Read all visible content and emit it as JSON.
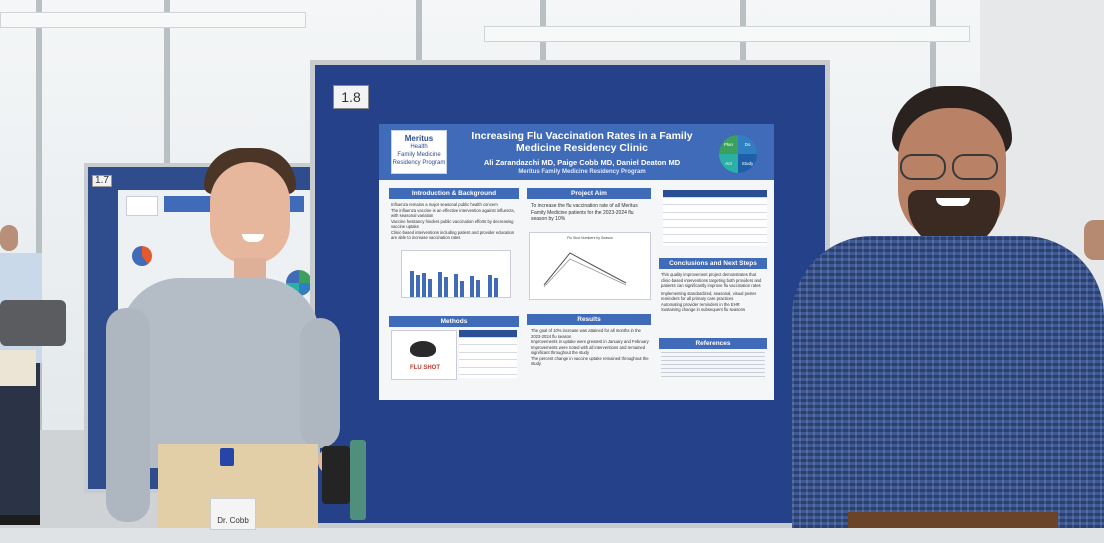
{
  "board_number": "1.8",
  "left_board_number": "1.7",
  "poster": {
    "logo": {
      "brand": "Meritus",
      "sub": "Health",
      "program": "Family Medicine Residency Program"
    },
    "title": "Increasing Flu Vaccination Rates in a Family Medicine Residency Clinic",
    "authors": "Ali Zarandazchi MD, Paige Cobb MD, Daniel Deaton MD",
    "program": "Meritus Family Medicine Residency Program",
    "pdsa": [
      "Plan",
      "Do",
      "Act",
      "Study"
    ],
    "sections": {
      "intro": "Introduction & Background",
      "aim": "Project Aim",
      "methods": "Methods",
      "results": "Results",
      "conclusions": "Conclusions and Next Steps",
      "references": "References"
    },
    "aim_text": "To increase the flu vaccination rate of all Meritus Family Medicine patients for the 2023-2024 flu season by 10%",
    "intro_bullets": [
      "Influenza remains a major seasonal public health concern",
      "The influenza vaccine is an effective intervention against influenza, with seasonal variation",
      "Vaccine hesitancy hinders public vaccination efforts by decreasing vaccine uptake",
      "Clinic-based interventions including patient and provider education are able to increase vaccination rates"
    ],
    "flu_shot_label": "FLU SHOT",
    "chart_title": "Flu Shot Numbers by Season",
    "results_bullets": [
      "The goal of 10% increase was attained for all months in the 2023-2024 flu season",
      "Improvements in uptake were greatest in January and February",
      "Improvements were noted with all interventions and remained significant throughout the study",
      "The percent change in vaccine uptake remained throughout the study"
    ],
    "conclusions_text": "This quality improvement project demonstrates that clinic-based interventions targeting both providers and patients can significantly improve flu vaccination rates",
    "next_steps": [
      "Implementing standardized, seasonal, visual poster reminders for all primary care practices",
      "Automating provider reminders in the EHR",
      "Sustaining change in subsequent flu seasons"
    ]
  },
  "badge": "Dr. Cobb"
}
